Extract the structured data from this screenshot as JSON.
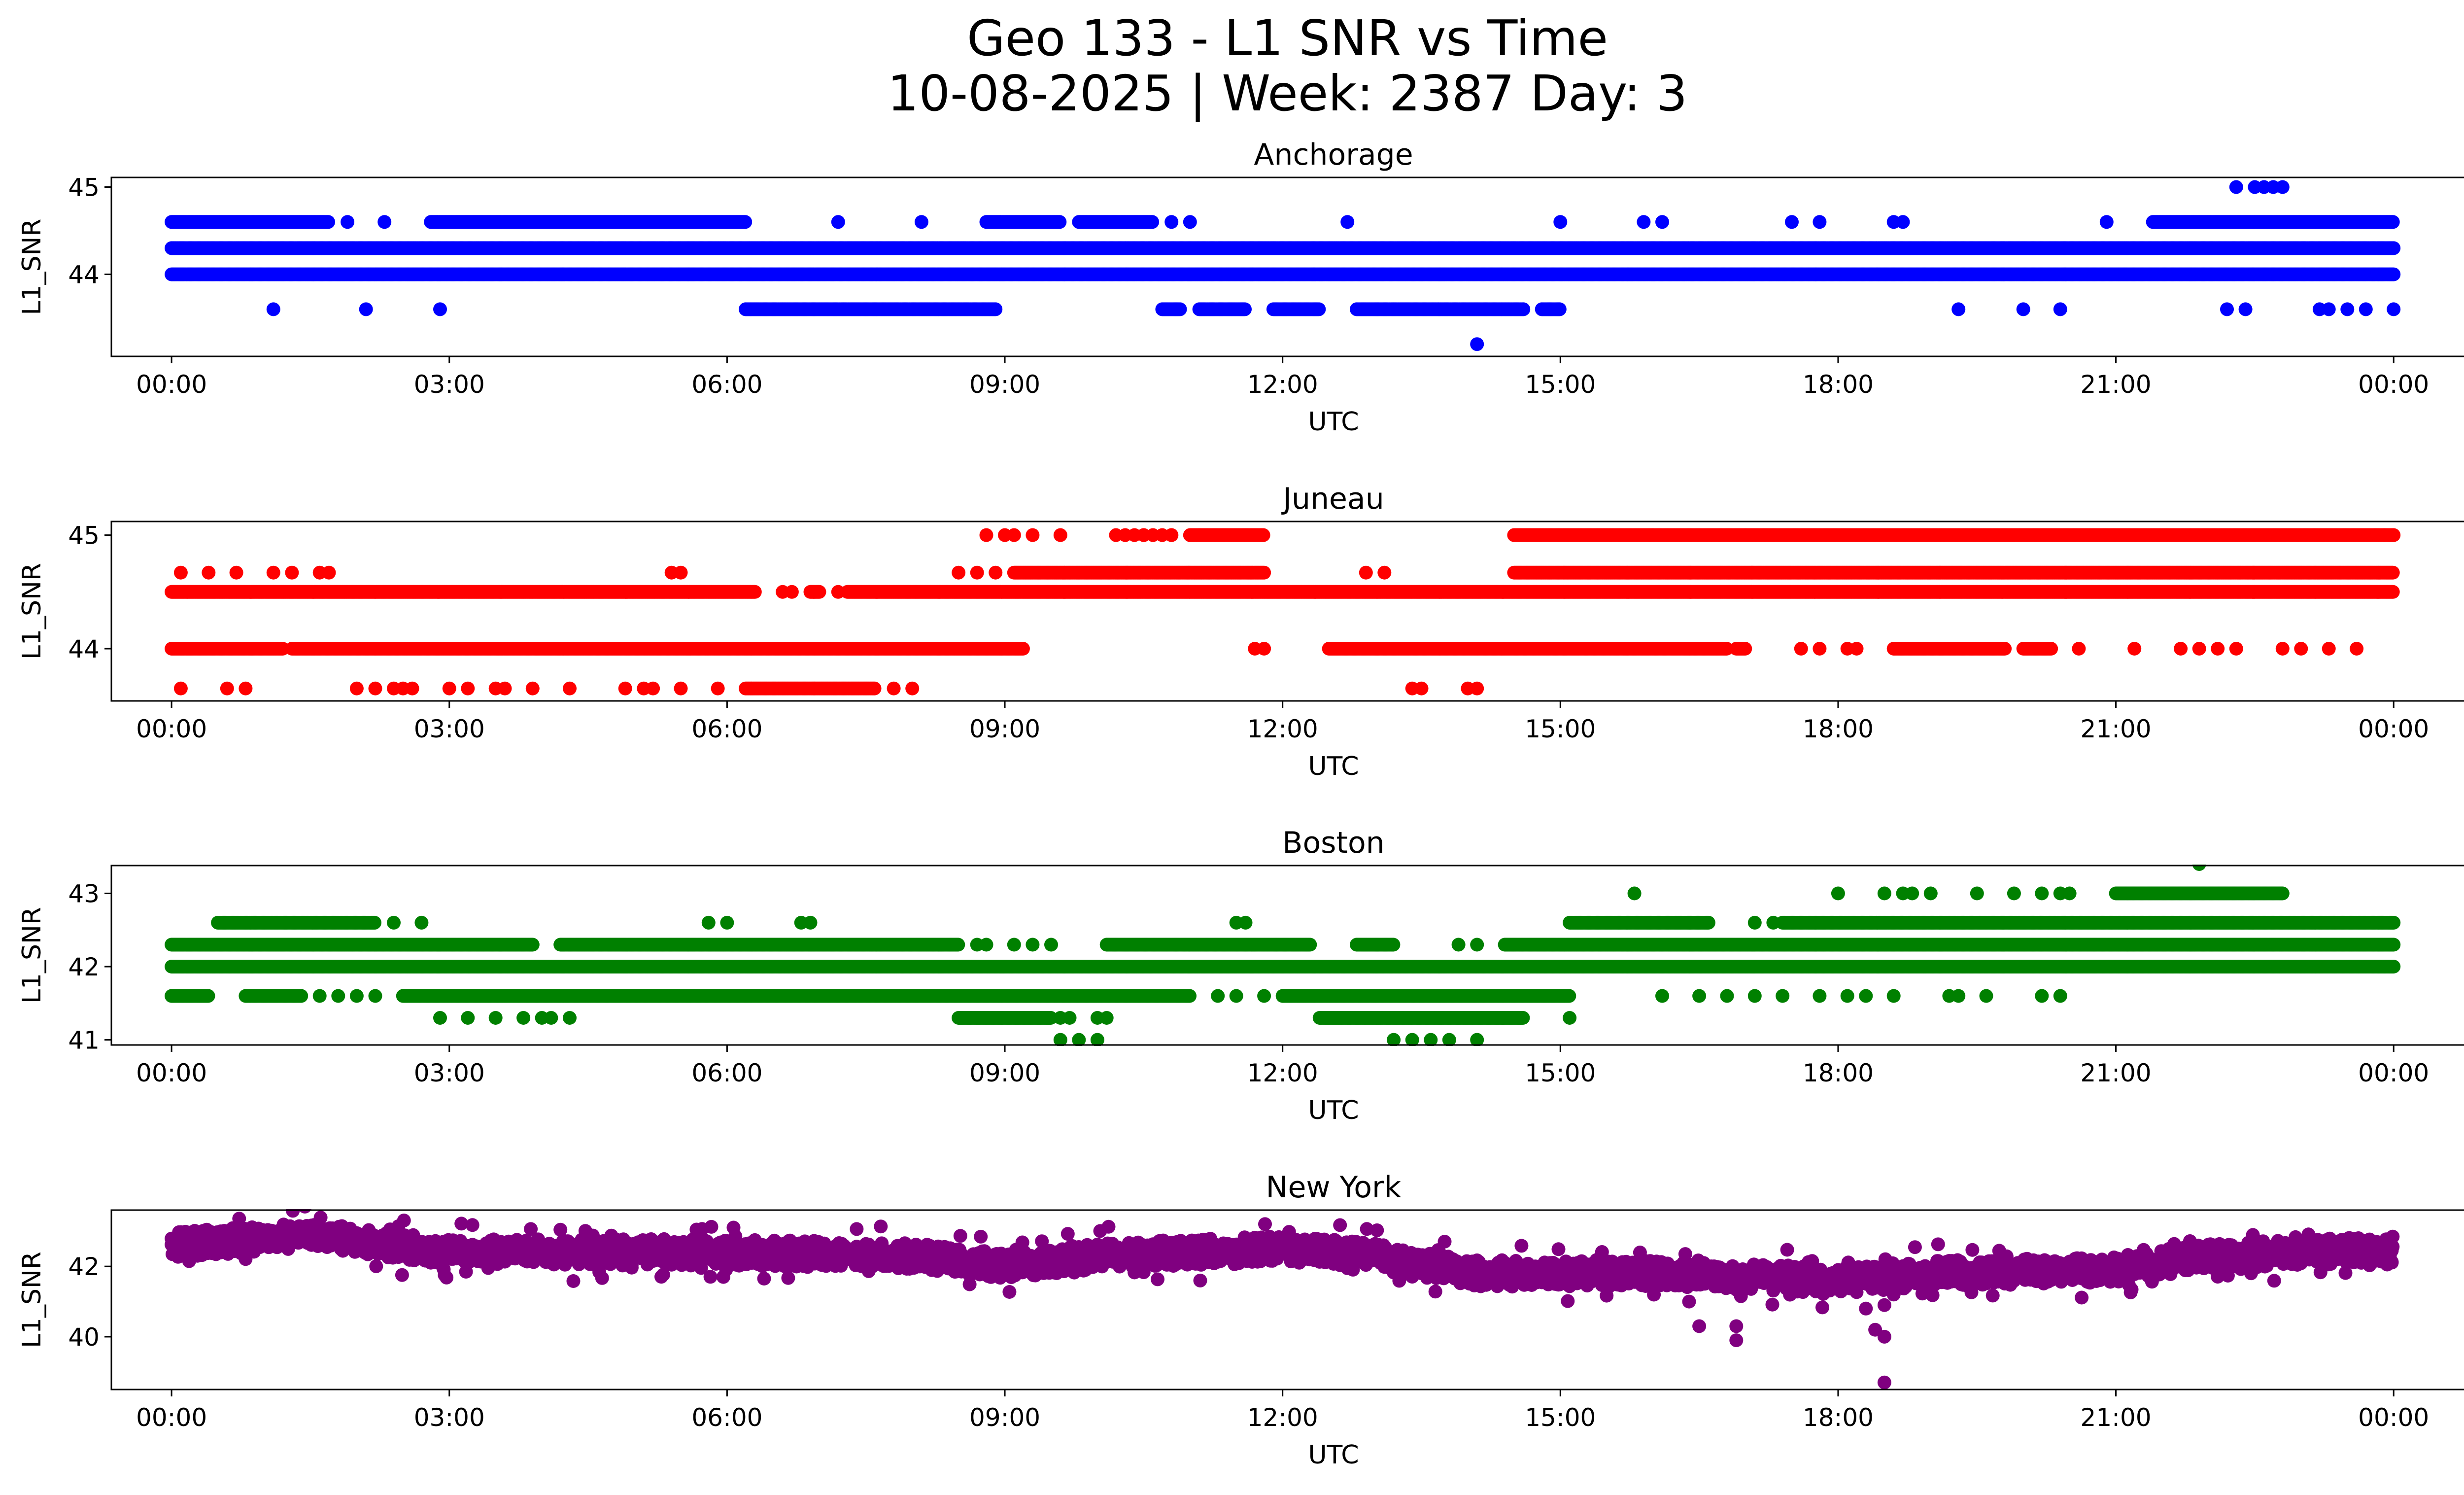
{
  "figure": {
    "title_line1": "Geo 133 - L1 SNR vs Time",
    "title_line2": "10-08-2025 | Week: 2387 Day: 3"
  },
  "chart_data": [
    {
      "type": "scatter",
      "title": "Anchorage",
      "xlabel": "UTC",
      "ylabel": "L1_SNR",
      "color": "#0000ff",
      "x_unit": "hours since 00:00 UTC",
      "xlim": [
        -0.65,
        25.75
      ],
      "xticks": [
        0,
        3,
        6,
        9,
        12,
        15,
        18,
        21,
        24
      ],
      "xtick_labels": [
        "00:00",
        "03:00",
        "06:00",
        "09:00",
        "12:00",
        "15:00",
        "18:00",
        "21:00",
        "00:00"
      ],
      "ylim": [
        43.06,
        45.11
      ],
      "yticks": [
        44,
        45
      ],
      "ytick_labels": [
        "44",
        "45"
      ],
      "series": [
        {
          "name": "continuous",
          "y": 44.3,
          "x_ranges": [
            [
              0.0,
              24.0
            ]
          ]
        },
        {
          "name": "continuous",
          "y": 44.0,
          "x_ranges": [
            [
              0.0,
              24.0
            ]
          ]
        },
        {
          "name": "upper",
          "y": 44.6,
          "x_ranges": [
            [
              0.0,
              1.7
            ],
            [
              2.8,
              6.2
            ],
            [
              8.8,
              9.6
            ],
            [
              9.8,
              10.6
            ],
            [
              21.4,
              24.0
            ]
          ]
        },
        {
          "name": "upper",
          "y": 44.6,
          "x_points": [
            1.9,
            2.3,
            7.2,
            8.1,
            10.8,
            11.0,
            12.7,
            15.0,
            15.9,
            16.1,
            17.5,
            17.8,
            18.6,
            18.7,
            20.9
          ]
        },
        {
          "name": "top",
          "y": 45.0,
          "x_points": [
            22.3,
            22.5,
            22.6,
            22.7,
            22.8
          ]
        },
        {
          "name": "lower",
          "y": 43.6,
          "x_ranges": [
            [
              6.2,
              8.9
            ],
            [
              10.7,
              10.9
            ],
            [
              11.1,
              11.6
            ],
            [
              11.9,
              12.4
            ],
            [
              12.8,
              14.6
            ],
            [
              14.8,
              15.0
            ]
          ]
        },
        {
          "name": "lower",
          "y": 43.6,
          "x_points": [
            1.1,
            2.1,
            2.9,
            19.3,
            20.0,
            20.4,
            22.2,
            22.4,
            23.2,
            23.3,
            23.5,
            23.7,
            24.0
          ]
        },
        {
          "name": "outlier",
          "y": 43.2,
          "x_points": [
            14.1
          ]
        }
      ]
    },
    {
      "type": "scatter",
      "title": "Juneau",
      "xlabel": "UTC",
      "ylabel": "L1_SNR",
      "color": "#ff0000",
      "x_unit": "hours since 00:00 UTC",
      "xlim": [
        -0.65,
        25.75
      ],
      "xticks": [
        0,
        3,
        6,
        9,
        12,
        15,
        18,
        21,
        24
      ],
      "xtick_labels": [
        "00:00",
        "03:00",
        "06:00",
        "09:00",
        "12:00",
        "15:00",
        "18:00",
        "21:00",
        "00:00"
      ],
      "ylim": [
        43.54,
        45.12
      ],
      "yticks": [
        44,
        45
      ],
      "ytick_labels": [
        "44",
        "45"
      ],
      "series": [
        {
          "name": "continuous",
          "y": 44.5,
          "x_ranges": [
            [
              0.0,
              6.3
            ],
            [
              6.9,
              7.0
            ],
            [
              7.3,
              24.0
            ]
          ]
        },
        {
          "name": "continuous",
          "y": 44.5,
          "x_points": [
            6.6,
            6.7,
            7.2
          ]
        },
        {
          "name": "middle",
          "y": 44.0,
          "x_ranges": [
            [
              0.0,
              1.2
            ],
            [
              1.3,
              9.2
            ],
            [
              12.5,
              16.8
            ],
            [
              16.9,
              17.0
            ],
            [
              18.6,
              19.8
            ],
            [
              20.0,
              20.3
            ]
          ]
        },
        {
          "name": "middle",
          "y": 44.0,
          "x_points": [
            11.7,
            11.8,
            17.6,
            17.8,
            18.1,
            18.2,
            20.6,
            21.2,
            21.7,
            21.9,
            22.1,
            22.3,
            22.8,
            23.0,
            23.3,
            23.6
          ]
        },
        {
          "name": "upper",
          "y": 45.0,
          "x_ranges": [
            [
              11.0,
              11.8
            ],
            [
              14.5,
              16.0
            ],
            [
              16.0,
              17.0
            ],
            [
              17.0,
              24.0
            ]
          ]
        },
        {
          "name": "upper",
          "y": 45.0,
          "x_points": [
            8.8,
            9.0,
            9.1,
            9.3,
            9.6,
            10.3,
            10.5,
            10.8
          ]
        },
        {
          "name": "upper-row",
          "y": 44.67,
          "x_ranges": [
            [
              9.1,
              11.8
            ],
            [
              14.5,
              24.0
            ]
          ]
        },
        {
          "name": "upper-row",
          "y": 44.67,
          "x_points": [
            0.1,
            0.4,
            0.7,
            1.1,
            1.3,
            1.6,
            1.7,
            5.4,
            5.5,
            8.5,
            8.7,
            8.9,
            12.9,
            13.1
          ]
        },
        {
          "name": "top",
          "y": 45.0,
          "x_points": [
            10.2,
            10.4,
            10.5,
            10.6,
            10.7,
            10.8,
            11.1,
            23.8,
            23.9,
            24.0
          ]
        },
        {
          "name": "lower",
          "y": 43.65,
          "x_ranges": [
            [
              6.2,
              7.6
            ]
          ]
        },
        {
          "name": "lower",
          "y": 43.65,
          "x_points": [
            0.1,
            0.6,
            0.8,
            2.0,
            2.2,
            2.4,
            2.5,
            2.6,
            3.0,
            3.2,
            3.5,
            3.6,
            3.9,
            4.3,
            4.9,
            5.1,
            5.2,
            5.5,
            5.9,
            7.8,
            8.0,
            13.4,
            13.5,
            14.0,
            14.1
          ]
        }
      ]
    },
    {
      "type": "scatter",
      "title": "Boston",
      "xlabel": "UTC",
      "ylabel": "L1_SNR",
      "color": "#008000",
      "x_unit": "hours since 00:00 UTC",
      "xlim": [
        -0.65,
        25.75
      ],
      "xticks": [
        0,
        3,
        6,
        9,
        12,
        15,
        18,
        21,
        24
      ],
      "xtick_labels": [
        "00:00",
        "03:00",
        "06:00",
        "09:00",
        "12:00",
        "15:00",
        "18:00",
        "21:00",
        "00:00"
      ],
      "ylim": [
        40.93,
        43.38
      ],
      "yticks": [
        41,
        42,
        43
      ],
      "ytick_labels": [
        "41",
        "42",
        "43"
      ],
      "series": [
        {
          "name": "continuous",
          "y": 42.0,
          "x_ranges": [
            [
              0.0,
              24.0
            ]
          ]
        },
        {
          "name": "row-42.3",
          "y": 42.3,
          "x_ranges": [
            [
              0.0,
              3.9
            ],
            [
              4.2,
              8.5
            ],
            [
              10.1,
              12.3
            ],
            [
              12.8,
              13.2
            ],
            [
              14.4,
              24.0
            ]
          ]
        },
        {
          "name": "row-42.3",
          "y": 42.3,
          "x_points": [
            8.7,
            8.8,
            9.1,
            9.3,
            9.5,
            13.9,
            14.1
          ]
        },
        {
          "name": "row-41.6",
          "y": 41.6,
          "x_ranges": [
            [
              0.0,
              0.4
            ],
            [
              0.8,
              1.4
            ],
            [
              2.5,
              11.0
            ],
            [
              12.0,
              15.1
            ]
          ]
        },
        {
          "name": "row-41.6",
          "y": 41.6,
          "x_points": [
            1.6,
            1.8,
            2.0,
            2.2,
            11.3,
            11.5,
            11.8,
            16.1,
            16.5,
            16.8,
            17.1,
            17.4,
            17.8,
            18.1,
            18.3,
            18.6,
            19.2,
            19.3,
            19.6,
            20.2,
            20.4
          ]
        },
        {
          "name": "row-42.6",
          "y": 42.6,
          "x_ranges": [
            [
              0.5,
              2.2
            ],
            [
              15.1,
              16.6
            ],
            [
              17.4,
              24.0
            ]
          ]
        },
        {
          "name": "row-42.6",
          "y": 42.6,
          "x_points": [
            2.4,
            2.7,
            5.8,
            6.0,
            6.8,
            6.9,
            11.5,
            11.6,
            17.1,
            17.3
          ]
        },
        {
          "name": "row-43",
          "y": 43.0,
          "x_ranges": [
            [
              21.0,
              22.8
            ]
          ]
        },
        {
          "name": "row-43",
          "y": 43.0,
          "x_points": [
            15.8,
            18.0,
            18.5,
            18.7,
            18.8,
            19.0,
            19.5,
            19.9,
            20.2,
            20.4,
            20.5
          ]
        },
        {
          "name": "row-41.3",
          "y": 41.3,
          "x_ranges": [
            [
              8.5,
              9.5
            ],
            [
              12.4,
              14.6
            ]
          ]
        },
        {
          "name": "row-41.3",
          "y": 41.3,
          "x_points": [
            2.9,
            3.2,
            3.5,
            3.8,
            4.0,
            4.1,
            4.3,
            9.6,
            9.7,
            10.0,
            10.1,
            15.1
          ]
        },
        {
          "name": "row-41",
          "y": 41.0,
          "x_points": [
            9.6,
            9.8,
            10.0,
            13.2,
            13.4,
            13.6,
            13.8,
            14.1
          ]
        },
        {
          "name": "outliers",
          "y": 43.4,
          "x_points": [
            21.9
          ]
        },
        {
          "name": "outliers",
          "y": 42.0,
          "x_points": [
            23.0,
            23.9
          ]
        }
      ]
    },
    {
      "type": "scatter",
      "title": "New York",
      "xlabel": "UTC",
      "ylabel": "L1_SNR",
      "color": "#800080",
      "x_unit": "hours since 00:00 UTC",
      "xlim": [
        -0.65,
        25.75
      ],
      "xticks": [
        0,
        3,
        6,
        9,
        12,
        15,
        18,
        21,
        24
      ],
      "xtick_labels": [
        "00:00",
        "03:00",
        "06:00",
        "09:00",
        "12:00",
        "15:00",
        "18:00",
        "21:00",
        "00:00"
      ],
      "ylim": [
        38.5,
        43.6
      ],
      "yticks": [
        40,
        42
      ],
      "ytick_labels": [
        "40",
        "42"
      ],
      "trend": [
        [
          0,
          42.6
        ],
        [
          1.5,
          42.9
        ],
        [
          3,
          42.4
        ],
        [
          6,
          42.4
        ],
        [
          8,
          42.3
        ],
        [
          9,
          42.0
        ],
        [
          10,
          42.3
        ],
        [
          12,
          42.5
        ],
        [
          13,
          42.3
        ],
        [
          14,
          41.8
        ],
        [
          15,
          41.8
        ],
        [
          16,
          41.8
        ],
        [
          18,
          41.6
        ],
        [
          19,
          41.8
        ],
        [
          21,
          41.9
        ],
        [
          22,
          42.3
        ],
        [
          24,
          42.5
        ]
      ],
      "spread": 0.75,
      "outliers": [
        [
          16.5,
          40.3
        ],
        [
          16.9,
          40.3
        ],
        [
          16.9,
          39.9
        ],
        [
          18.3,
          40.8
        ],
        [
          18.4,
          40.2
        ],
        [
          18.5,
          40.9
        ],
        [
          18.5,
          40.0
        ],
        [
          18.5,
          38.7
        ],
        [
          18.6,
          41.2
        ]
      ]
    }
  ]
}
